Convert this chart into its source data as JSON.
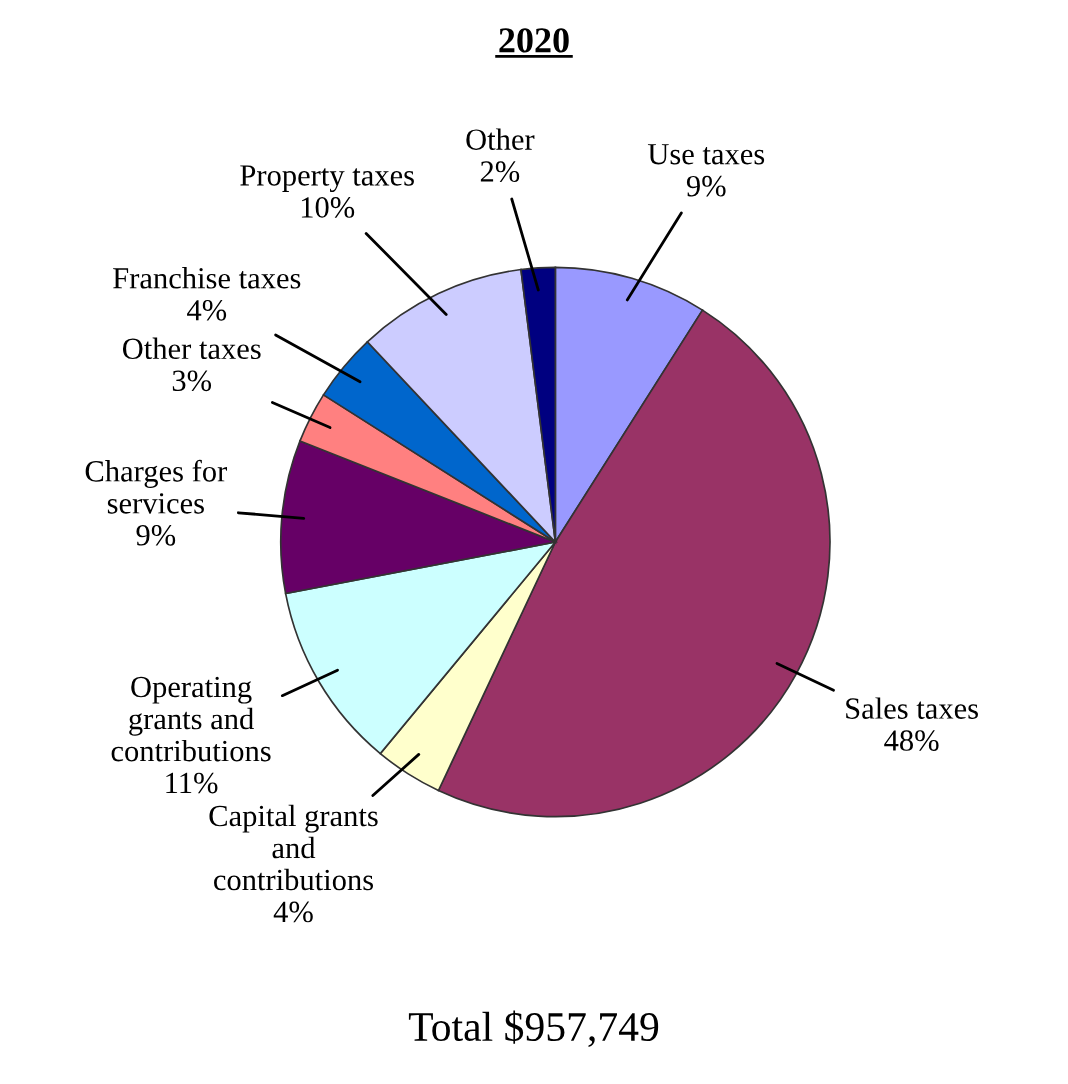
{
  "chart_data": {
    "type": "pie",
    "title": "2020",
    "categories": [
      "Use taxes",
      "Sales taxes",
      "Capital grants\nand\ncontributions",
      "Operating\ngrants and\ncontributions",
      "Charges for\nservices",
      "Other taxes",
      "Franchise taxes",
      "Property taxes",
      "Other"
    ],
    "values": [
      9,
      48,
      4,
      11,
      9,
      3,
      4,
      10,
      2
    ],
    "colors": [
      "#9999ff",
      "#993366",
      "#ffffcc",
      "#ccffff",
      "#660066",
      "#ff8080",
      "#0066cc",
      "#ccccff",
      "#000080"
    ],
    "data_labels": true,
    "value_labels": [
      "9%",
      "48%",
      "4%",
      "11%",
      "9%",
      "3%",
      "4%",
      "10%",
      "2%"
    ],
    "annotations": [
      "Total $957,749"
    ]
  }
}
